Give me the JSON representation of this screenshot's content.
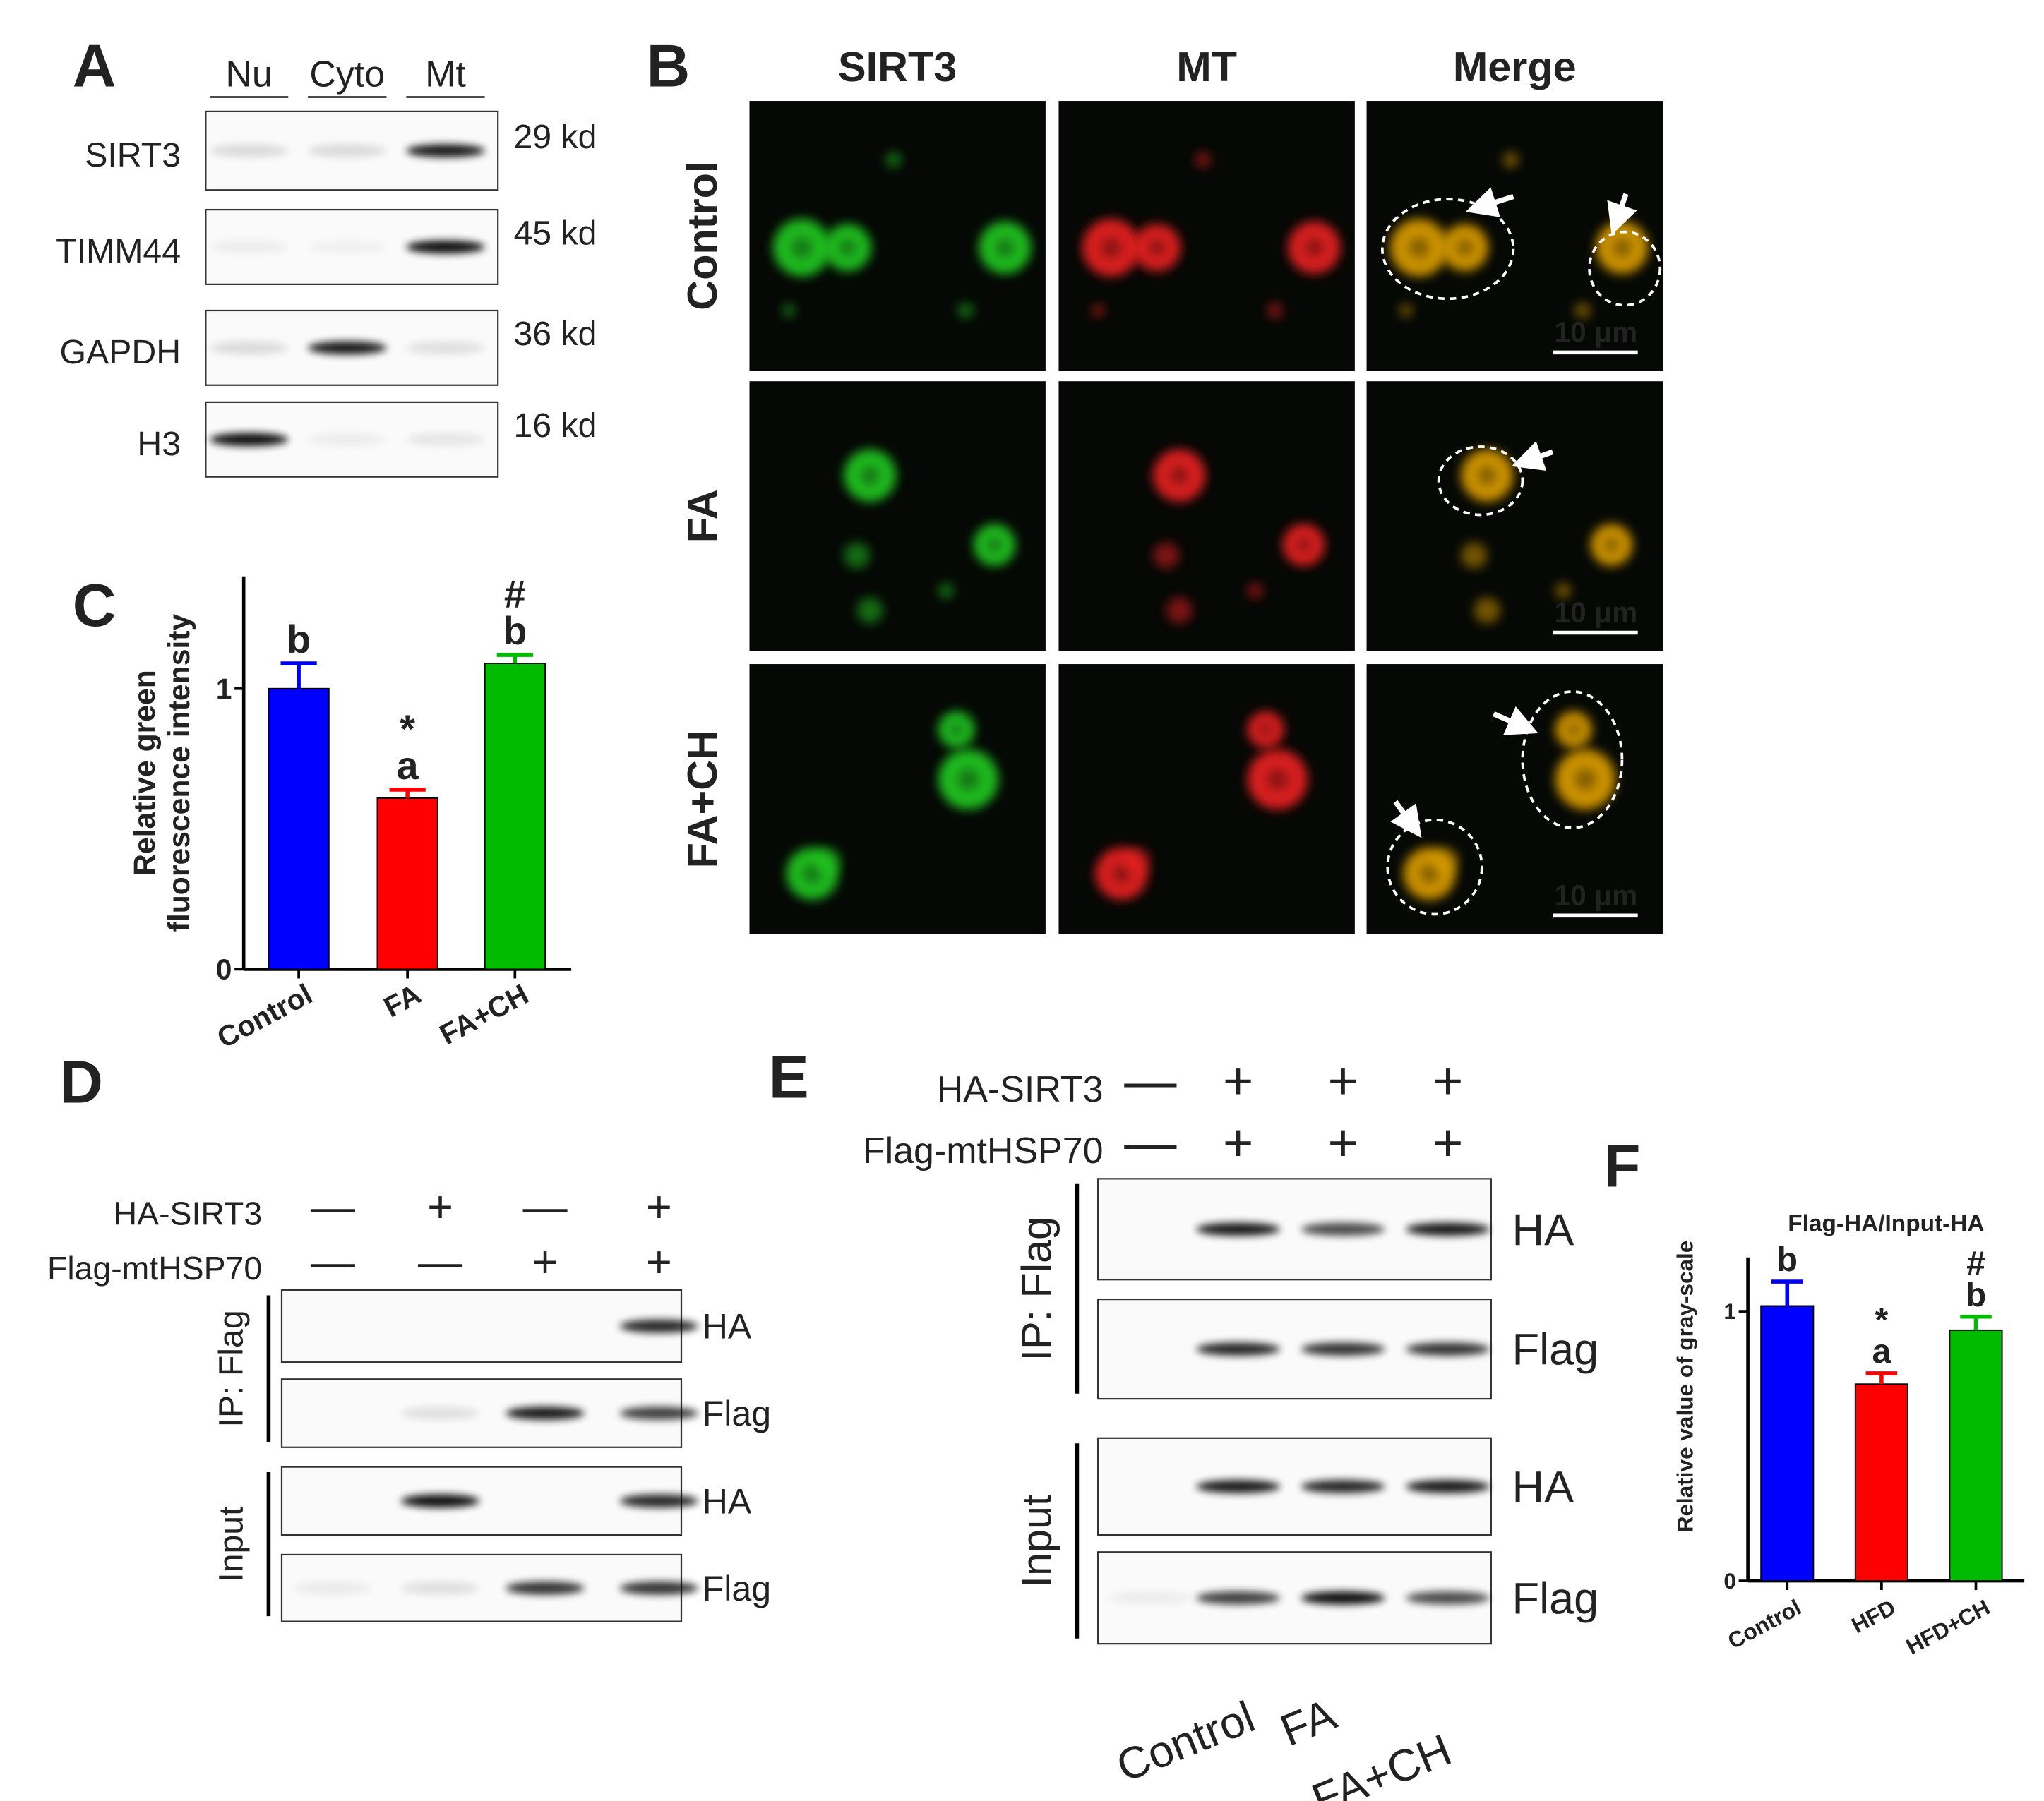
{
  "panel_labels": [
    "A",
    "B",
    "C",
    "D",
    "E",
    "F"
  ],
  "panel_a": {
    "columns": [
      "Nu",
      "Cyto",
      "Mt"
    ],
    "rows": [
      {
        "protein": "SIRT3",
        "size": "29 kd"
      },
      {
        "protein": "TIMM44",
        "size": "45 kd"
      },
      {
        "protein": "GAPDH",
        "size": "36 kd"
      },
      {
        "protein": "H3",
        "size": "16 kd"
      }
    ]
  },
  "panel_b": {
    "columns": [
      "SIRT3",
      "MT",
      "Merge"
    ],
    "rows": [
      "Control",
      "FA",
      "FA+CH"
    ],
    "scale_bar": "10 μm"
  },
  "chart_data": [
    {
      "type": "bar",
      "ylabel": [
        "Relative green",
        "fluorescence intensity"
      ],
      "categories": [
        "Control",
        "FA",
        "FA+CH"
      ],
      "values": [
        1.0,
        0.61,
        1.09
      ],
      "errors": [
        0.09,
        0.03,
        0.03
      ],
      "colors": [
        "#0000ff",
        "#ff0000",
        "#00bb00"
      ],
      "annotations": [
        [
          "b"
        ],
        [
          "*",
          "a"
        ],
        [
          "#",
          "b"
        ]
      ],
      "ylim": [
        0,
        1.4
      ],
      "yticks": [
        0,
        1
      ]
    },
    {
      "type": "bar",
      "title": "Flag-HA/Input-HA",
      "ylabel": "Relative value of gray-scale",
      "categories": [
        "Control",
        "HFD",
        "HFD+CH"
      ],
      "values": [
        1.02,
        0.73,
        0.93
      ],
      "errors": [
        0.09,
        0.04,
        0.05
      ],
      "colors": [
        "#0000ff",
        "#ff0000",
        "#00bb00"
      ],
      "annotations": [
        [
          "b"
        ],
        [
          "*",
          "a"
        ],
        [
          "#",
          "b"
        ]
      ],
      "ylim": [
        0,
        1.2
      ],
      "yticks": [
        0,
        1
      ]
    }
  ],
  "panel_d": {
    "conditions": [
      {
        "name": "HA-SIRT3",
        "signs": [
          "—",
          "+",
          "—",
          "+"
        ]
      },
      {
        "name": "Flag-mtHSP70",
        "signs": [
          "—",
          "—",
          "+",
          "+"
        ]
      }
    ],
    "groups": [
      {
        "name": "IP: Flag",
        "blots": [
          "HA",
          "Flag"
        ]
      },
      {
        "name": "Input",
        "blots": [
          "HA",
          "Flag"
        ]
      }
    ]
  },
  "panel_e": {
    "conditions": [
      {
        "name": "HA-SIRT3",
        "signs": [
          "—",
          "+",
          "+",
          "+"
        ]
      },
      {
        "name": "Flag-mtHSP70",
        "signs": [
          "—",
          "+",
          "+",
          "+"
        ]
      }
    ],
    "groups": [
      {
        "name": "IP: Flag",
        "blots": [
          "HA",
          "Flag"
        ]
      },
      {
        "name": "Input",
        "blots": [
          "HA",
          "Flag"
        ]
      }
    ],
    "lanes": [
      "Control",
      "FA",
      "FA+CH"
    ]
  }
}
